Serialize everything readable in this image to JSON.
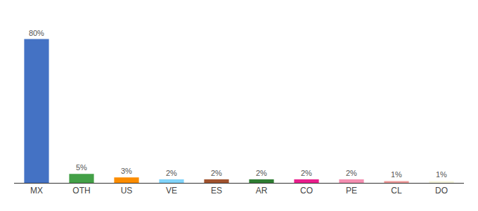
{
  "chart_data": {
    "type": "bar",
    "categories": [
      "MX",
      "OTH",
      "US",
      "VE",
      "ES",
      "AR",
      "CO",
      "PE",
      "CL",
      "DO"
    ],
    "values": [
      80,
      5,
      3,
      2,
      2,
      2,
      2,
      2,
      1,
      1
    ],
    "value_labels": [
      "80%",
      "5%",
      "3%",
      "2%",
      "2%",
      "2%",
      "2%",
      "2%",
      "1%",
      "1%"
    ],
    "data_labels": true,
    "colors": [
      "#4472c4",
      "#43a047",
      "#fb8c00",
      "#81d4fa",
      "#a0522d",
      "#2e7d32",
      "#e91e8c",
      "#f48fb1",
      "#ef9a9a",
      "#f5f5dc"
    ],
    "ylim": [
      0,
      90
    ],
    "tick_labels": "x",
    "grid": false
  }
}
